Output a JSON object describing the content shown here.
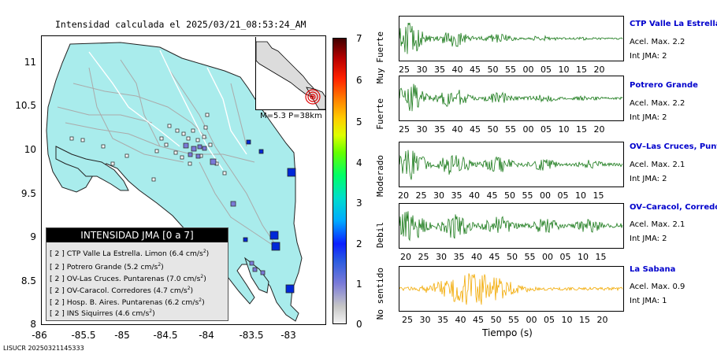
{
  "map": {
    "title": "Intensidad calculada el 2025/03/21_08:53:24_AM",
    "y_ticks": [
      "11",
      "10.5",
      "10",
      "9.5",
      "9",
      "8.5",
      "8"
    ],
    "x_ticks": [
      "-86",
      "-85.5",
      "-85",
      "-84.5",
      "-84",
      "-83.5",
      "-83"
    ],
    "legend": {
      "title": "INTENSIDAD JMA [0 a 7]",
      "entries": [
        {
          "level": "[ 2 ]",
          "text": "CTP Valle La Estrella. Limon",
          "value": "(6.4 cm/s",
          "sup": "2",
          "close": ")"
        },
        {
          "level": "[ 2 ]",
          "text": "Potrero Grande",
          "value": "(5.2 cm/s",
          "sup": "2",
          "close": ")"
        },
        {
          "level": "[ 2 ]",
          "text": "OV-Las Cruces. Puntarenas",
          "value": "(7.0 cm/s",
          "sup": "2",
          "close": ")"
        },
        {
          "level": "[ 2 ]",
          "text": "OV-Caracol. Corredores",
          "value": "(4.7 cm/s",
          "sup": "2",
          "close": ")"
        },
        {
          "level": "[ 2 ]",
          "text": "Hosp. B. Aires. Puntarenas",
          "value": "(6.2 cm/s",
          "sup": "2",
          "close": ")"
        },
        {
          "level": "[ 2 ]",
          "text": "INS Siquirres",
          "value": "(4.6 cm/s",
          "sup": "2",
          "close": ")"
        }
      ]
    },
    "inset_label": "M=5.3 P=38km",
    "footer": "LISUCR 20250321145333"
  },
  "scale": {
    "numbers": [
      "7",
      "6",
      "5",
      "4",
      "3",
      "2",
      "1",
      "0"
    ],
    "words": [
      "Muy Fuerte",
      "Fuerte",
      "Moderado",
      "Debil",
      "No sentido"
    ]
  },
  "colors": {
    "land": "#a9ecec",
    "border": "#ffffff",
    "roads": "#aaaaaa",
    "wave_green": "#1a7a1a",
    "wave_orange": "#f2a900",
    "station_name": "#0000cc",
    "strong_station": "#0028d8"
  },
  "panels": [
    {
      "name": "CTP Valle La Estrella, L",
      "accel": "Acel. Max. 2.2",
      "intensity": "Int JMA: 2",
      "ticks": [
        "25",
        "30",
        "35",
        "40",
        "45",
        "50",
        "55",
        "00",
        "05",
        "10",
        "15",
        "20"
      ]
    },
    {
      "name": "Potrero Grande",
      "accel": "Acel. Max. 2.2",
      "intensity": "Int JMA: 2",
      "ticks": [
        "25",
        "30",
        "35",
        "40",
        "45",
        "50",
        "55",
        "00",
        "05",
        "10",
        "15",
        "20"
      ]
    },
    {
      "name": "OV–Las Cruces, Puntar",
      "accel": "Acel. Max. 2.1",
      "intensity": "Int JMA: 2",
      "ticks": [
        "20",
        "25",
        "30",
        "35",
        "40",
        "45",
        "50",
        "55",
        "00",
        "05",
        "10",
        "15"
      ]
    },
    {
      "name": "OV–Caracol, Corredore",
      "accel": "Acel. Max. 2.1",
      "intensity": "Int JMA: 2",
      "ticks": [
        "20",
        "25",
        "30",
        "35",
        "40",
        "45",
        "50",
        "55",
        "00",
        "05",
        "10",
        "15"
      ]
    },
    {
      "name": "La Sabana",
      "accel": "Acel. Max. 0.9",
      "intensity": "Int JMA: 1",
      "ticks": [
        "25",
        "30",
        "35",
        "40",
        "45",
        "50",
        "55",
        "00",
        "05",
        "10",
        "15",
        "20"
      ]
    }
  ],
  "time_label": "Tiempo (s)"
}
